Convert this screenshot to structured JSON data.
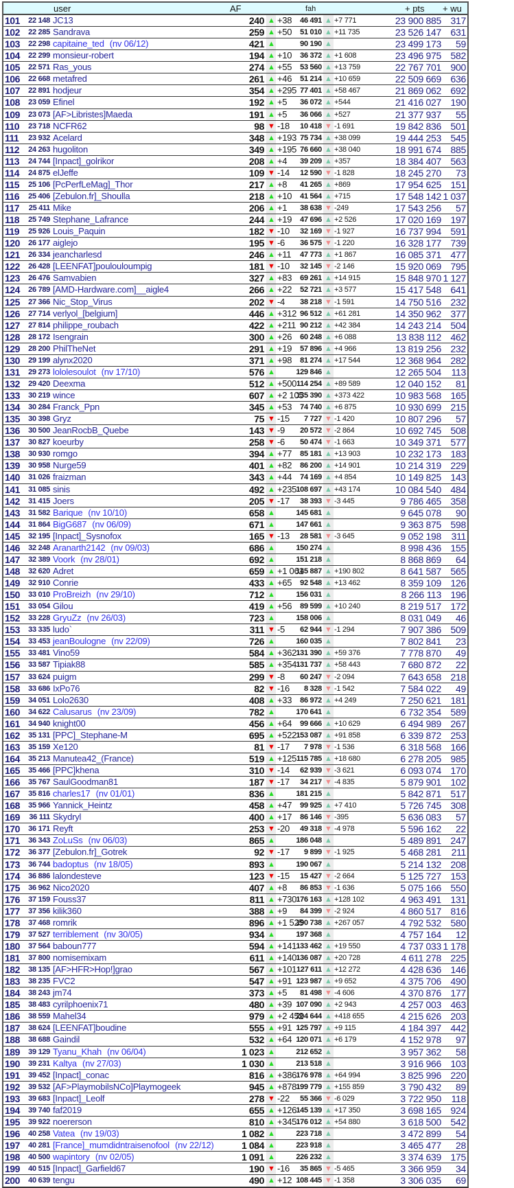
{
  "header": {
    "user": "user",
    "af": "AF",
    "fah": "fah",
    "pts": "+ pts",
    "wu": "+ wu"
  },
  "colors": {
    "af_up": "#22dd22",
    "af_down": "#ee0000",
    "fah_up": "#77c9a8",
    "fah_down": "#f08a8a",
    "header_bg": "#ddfbff",
    "name": "#25259a",
    "new_name": "#3030e8"
  },
  "icons": {
    "up": "triangle-up-icon",
    "down": "triangle-down-icon",
    "up_glyph": "▲",
    "down_glyph": "▼"
  },
  "columns": [
    "rank",
    "score",
    "name",
    "new_since",
    "af",
    "af_trend",
    "af_delta",
    "fah",
    "fah_trend",
    "fah_delta",
    "pts",
    "wu"
  ],
  "rows": [
    [
      "101",
      "22 148",
      "JC13",
      "",
      "240",
      "u",
      "+38",
      "46 491",
      "u",
      "+7 771",
      "23 900 885",
      "317"
    ],
    [
      "102",
      "22 285",
      "Sandrava",
      "",
      "259",
      "u",
      "+50",
      "51 010",
      "u",
      "+11 735",
      "23 526 147",
      "631"
    ],
    [
      "103",
      "22 298",
      "capitaine_ted",
      "(nv 06/12)",
      "421",
      "u",
      "",
      "90 190",
      "u",
      "",
      "23 499 173",
      "59"
    ],
    [
      "104",
      "22 299",
      "monsieur-robert",
      "",
      "194",
      "u",
      "+10",
      "36 372",
      "u",
      "+1 608",
      "23 496 975",
      "582"
    ],
    [
      "105",
      "22 571",
      "Ras_yous",
      "",
      "274",
      "u",
      "+55",
      "53 560",
      "u",
      "+13 759",
      "22 767 701",
      "900"
    ],
    [
      "106",
      "22 668",
      "metafred",
      "",
      "261",
      "u",
      "+46",
      "51 214",
      "u",
      "+10 659",
      "22 509 669",
      "636"
    ],
    [
      "107",
      "22 891",
      "hodjeur",
      "",
      "354",
      "u",
      "+295",
      "77 401",
      "u",
      "+58 467",
      "21 869 062",
      "692"
    ],
    [
      "108",
      "23 059",
      "Efinel",
      "",
      "192",
      "u",
      "+5",
      "36 072",
      "u",
      "+544",
      "21 416 027",
      "190"
    ],
    [
      "109",
      "23 073",
      "[AF>Libristes]Maeda",
      "",
      "191",
      "u",
      "+5",
      "36 066",
      "u",
      "+527",
      "21 377 937",
      "55"
    ],
    [
      "110",
      "23 718",
      "NCFR62",
      "",
      "98",
      "d",
      "-18",
      "10 418",
      "d",
      "-1 691",
      "19 842 836",
      "501"
    ],
    [
      "111",
      "23 932",
      "Acelard",
      "",
      "348",
      "u",
      "+193",
      "75 734",
      "u",
      "+38 099",
      "19 444 253",
      "545"
    ],
    [
      "112",
      "24 263",
      "hugoliton",
      "",
      "349",
      "u",
      "+195",
      "76 660",
      "u",
      "+38 040",
      "18 991 674",
      "885"
    ],
    [
      "113",
      "24 744",
      "[Inpact]_golrikor",
      "",
      "208",
      "u",
      "+4",
      "39 209",
      "u",
      "+357",
      "18 384 407",
      "563"
    ],
    [
      "114",
      "24 875",
      "elJeffe",
      "",
      "109",
      "d",
      "-14",
      "12 590",
      "d",
      "-1 828",
      "18 245 270",
      "73"
    ],
    [
      "115",
      "25 106",
      "[PcPerfLeMag]_Thor",
      "",
      "217",
      "u",
      "+8",
      "41 265",
      "u",
      "+869",
      "17 954 625",
      "151"
    ],
    [
      "116",
      "25 406",
      "[Zebulon.fr]_Shoulla",
      "",
      "218",
      "u",
      "+10",
      "41 564",
      "u",
      "+715",
      "17 548 142",
      "1 037"
    ],
    [
      "117",
      "25 411",
      "Mike",
      "",
      "206",
      "u",
      "+1",
      "38 638",
      "d",
      "-249",
      "17 543 256",
      "57"
    ],
    [
      "118",
      "25 749",
      "Stephane_Lafrance",
      "",
      "244",
      "u",
      "+19",
      "47 696",
      "u",
      "+2 526",
      "17 020 169",
      "197"
    ],
    [
      "119",
      "25 926",
      "Louis_Paquin",
      "",
      "182",
      "d",
      "-10",
      "32 169",
      "d",
      "-1 927",
      "16 737 994",
      "591"
    ],
    [
      "120",
      "26 177",
      "aiglejo",
      "",
      "195",
      "d",
      "-6",
      "36 575",
      "d",
      "-1 220",
      "16 328 177",
      "739"
    ],
    [
      "121",
      "26 334",
      "jeancharlesd",
      "",
      "246",
      "u",
      "+11",
      "47 773",
      "u",
      "+1 867",
      "16 085 371",
      "477"
    ],
    [
      "122",
      "26 428",
      "[LEENFAT]poulouloumpig",
      "",
      "181",
      "d",
      "-10",
      "32 145",
      "d",
      "-2 146",
      "15 920 069",
      "795"
    ],
    [
      "123",
      "26 476",
      "Samvabien",
      "",
      "327",
      "u",
      "+83",
      "69 261",
      "u",
      "+14 915",
      "15 848 970",
      "1 127"
    ],
    [
      "124",
      "26 789",
      "[AMD-Hardware.com]__aigle4",
      "",
      "266",
      "u",
      "+22",
      "52 721",
      "u",
      "+3 577",
      "15 417 548",
      "641"
    ],
    [
      "125",
      "27 366",
      "Nic_Stop_Virus",
      "",
      "202",
      "d",
      "-4",
      "38 218",
      "d",
      "-1 591",
      "14 750 516",
      "232"
    ],
    [
      "126",
      "27 714",
      "verlyol_[belgium]",
      "",
      "446",
      "u",
      "+312",
      "96 512",
      "u",
      "+61 281",
      "14 350 962",
      "377"
    ],
    [
      "127",
      "27 814",
      "philippe_roubach",
      "",
      "422",
      "u",
      "+211",
      "90 212",
      "u",
      "+42 384",
      "14 243 214",
      "504"
    ],
    [
      "128",
      "28 172",
      "Isengrain",
      "",
      "300",
      "u",
      "+26",
      "60 248",
      "u",
      "+6 088",
      "13 838 112",
      "462"
    ],
    [
      "129",
      "28 200",
      "PhilTheNet",
      "",
      "291",
      "u",
      "+19",
      "57 896",
      "u",
      "+4 966",
      "13 819 256",
      "232"
    ],
    [
      "130",
      "29 199",
      "alynx2020",
      "",
      "371",
      "u",
      "+98",
      "81 274",
      "u",
      "+17 544",
      "12 368 964",
      "282"
    ],
    [
      "131",
      "29 273",
      "lololesoulot",
      "(nv 17/10)",
      "576",
      "u",
      "",
      "129 846",
      "u",
      "",
      "12 265 504",
      "113"
    ],
    [
      "132",
      "29 420",
      "Deexma",
      "",
      "512",
      "u",
      "+500",
      "114 254",
      "u",
      "+89 589",
      "12 040 152",
      "81"
    ],
    [
      "133",
      "30 219",
      "wince",
      "",
      "607",
      "u",
      "+2 105",
      "135 390",
      "u",
      "+373 422",
      "10 983 568",
      "165"
    ],
    [
      "134",
      "30 284",
      "Franck_Ppn",
      "",
      "345",
      "u",
      "+53",
      "74 740",
      "u",
      "+6 875",
      "10 930 699",
      "215"
    ],
    [
      "135",
      "30 398",
      "Gryz",
      "",
      "75",
      "d",
      "-15",
      "7 727",
      "d",
      "-1 420",
      "10 807 296",
      "57"
    ],
    [
      "136",
      "30 500",
      "JeanRocbB_Quebe",
      "",
      "143",
      "d",
      "-9",
      "20 572",
      "d",
      "-2 864",
      "10 692 745",
      "508"
    ],
    [
      "137",
      "30 827",
      "koeurby",
      "",
      "258",
      "d",
      "-6",
      "50 474",
      "d",
      "-1 663",
      "10 349 371",
      "577"
    ],
    [
      "138",
      "30 930",
      "romgo",
      "",
      "394",
      "u",
      "+77",
      "85 181",
      "u",
      "+13 903",
      "10 232 173",
      "183"
    ],
    [
      "139",
      "30 958",
      "Nurge59",
      "",
      "401",
      "u",
      "+82",
      "86 200",
      "u",
      "+14 901",
      "10 214 319",
      "229"
    ],
    [
      "140",
      "31 026",
      "fraizman",
      "",
      "343",
      "u",
      "+44",
      "74 169",
      "u",
      "+4 854",
      "10 149 825",
      "143"
    ],
    [
      "141",
      "31 085",
      "sinis",
      "",
      "492",
      "u",
      "+235",
      "108 697",
      "u",
      "+43 174",
      "10 084 540",
      "484"
    ],
    [
      "142",
      "31 415",
      "Joers",
      "",
      "205",
      "d",
      "-17",
      "38 393",
      "d",
      "-3 445",
      "9 786 465",
      "358"
    ],
    [
      "143",
      "31 582",
      "Barique",
      "(nv 10/10)",
      "658",
      "u",
      "",
      "145 681",
      "u",
      "",
      "9 645 078",
      "90"
    ],
    [
      "144",
      "31 864",
      "BigG687",
      "(nv 06/09)",
      "671",
      "u",
      "",
      "147 661",
      "u",
      "",
      "9 363 875",
      "598"
    ],
    [
      "145",
      "32 195",
      "[Inpact]_Sysnofox",
      "",
      "165",
      "d",
      "-13",
      "28 581",
      "d",
      "-3 645",
      "9 052 198",
      "311"
    ],
    [
      "146",
      "32 248",
      "Aranarth2142",
      "(nv 09/03)",
      "686",
      "u",
      "",
      "150 274",
      "u",
      "",
      "8 998 436",
      "155"
    ],
    [
      "147",
      "32 389",
      "Voork",
      "(nv 28/01)",
      "692",
      "u",
      "",
      "151 218",
      "u",
      "",
      "8 868 869",
      "64"
    ],
    [
      "148",
      "32 620",
      "Adret",
      "",
      "659",
      "u",
      "+1 061",
      "145 887",
      "u",
      "+190 802",
      "8 641 587",
      "565"
    ],
    [
      "149",
      "32 910",
      "Conrie",
      "",
      "433",
      "u",
      "+65",
      "92 548",
      "u",
      "+13 462",
      "8 359 109",
      "126"
    ],
    [
      "150",
      "33 010",
      "ProBreizh",
      "(nv 29/10)",
      "712",
      "u",
      "",
      "156 031",
      "u",
      "",
      "8 266 113",
      "196"
    ],
    [
      "151",
      "33 054",
      "Gilou",
      "",
      "419",
      "u",
      "+56",
      "89 599",
      "u",
      "+10 240",
      "8 219 517",
      "172"
    ],
    [
      "152",
      "33 228",
      "GryuZz",
      "(nv 26/03)",
      "723",
      "u",
      "",
      "158 006",
      "u",
      "",
      "8 031 049",
      "46"
    ],
    [
      "153",
      "33 335",
      "ludo`",
      "",
      "311",
      "d",
      "-5",
      "62 944",
      "d",
      "-1 294",
      "7 907 386",
      "509"
    ],
    [
      "154",
      "33 453",
      "jeanBoulogne",
      "(nv 22/09)",
      "726",
      "u",
      "",
      "160 035",
      "u",
      "",
      "7 802 841",
      "23"
    ],
    [
      "155",
      "33 481",
      "Vino59",
      "",
      "584",
      "u",
      "+362",
      "131 390",
      "u",
      "+59 376",
      "7 778 870",
      "49"
    ],
    [
      "156",
      "33 587",
      "Tipiak88",
      "",
      "585",
      "u",
      "+354",
      "131 737",
      "u",
      "+58 443",
      "7 680 872",
      "22"
    ],
    [
      "157",
      "33 624",
      "puigm",
      "",
      "299",
      "d",
      "-8",
      "60 247",
      "d",
      "-2 094",
      "7 643 658",
      "218"
    ],
    [
      "158",
      "33 686",
      "IxPo76",
      "",
      "82",
      "d",
      "-16",
      "8 328",
      "d",
      "-1 542",
      "7 584 022",
      "49"
    ],
    [
      "159",
      "34 051",
      "Lolo2630",
      "",
      "408",
      "u",
      "+33",
      "86 972",
      "u",
      "+4 249",
      "7 250 621",
      "181"
    ],
    [
      "160",
      "34 622",
      "Calusarus",
      "(nv 23/09)",
      "782",
      "u",
      "",
      "170 641",
      "u",
      "",
      "6 732 354",
      "589"
    ],
    [
      "161",
      "34 940",
      "knight00",
      "",
      "456",
      "u",
      "+64",
      "99 666",
      "u",
      "+10 629",
      "6 494 989",
      "267"
    ],
    [
      "162",
      "35 131",
      "[PPC]_Stephane-M",
      "",
      "695",
      "u",
      "+522",
      "153 087",
      "u",
      "+91 858",
      "6 339 872",
      "253"
    ],
    [
      "163",
      "35 159",
      "Xe120",
      "",
      "81",
      "d",
      "-17",
      "7 978",
      "d",
      "-1 536",
      "6 318 568",
      "166"
    ],
    [
      "164",
      "35 213",
      "Manutea42_(France)",
      "",
      "519",
      "u",
      "+125",
      "115 785",
      "u",
      "+18 680",
      "6 278 205",
      "985"
    ],
    [
      "165",
      "35 466",
      "[PPC]khena",
      "",
      "310",
      "d",
      "-14",
      "62 939",
      "d",
      "-3 621",
      "6 093 074",
      "170"
    ],
    [
      "166",
      "35 767",
      "SaulGoodman81",
      "",
      "187",
      "d",
      "-17",
      "34 217",
      "d",
      "-4 835",
      "5 879 901",
      "102"
    ],
    [
      "167",
      "35 816",
      "charles17",
      "(nv 01/01)",
      "836",
      "u",
      "",
      "181 215",
      "u",
      "",
      "5 842 871",
      "517"
    ],
    [
      "168",
      "35 966",
      "Yannick_Heintz",
      "",
      "458",
      "u",
      "+47",
      "99 925",
      "u",
      "+7 410",
      "5 726 745",
      "308"
    ],
    [
      "169",
      "36 111",
      "Skydryl",
      "",
      "400",
      "u",
      "+17",
      "86 146",
      "d",
      "-395",
      "5 636 083",
      "57"
    ],
    [
      "170",
      "36 171",
      "Reyft",
      "",
      "253",
      "d",
      "-20",
      "49 318",
      "d",
      "-4 978",
      "5 596 162",
      "22"
    ],
    [
      "171",
      "36 343",
      "ZoLuSs",
      "(nv 06/03)",
      "865",
      "u",
      "",
      "186 048",
      "u",
      "",
      "5 489 891",
      "247"
    ],
    [
      "172",
      "36 377",
      "[Zebulon.fr]_Gotrek",
      "",
      "92",
      "d",
      "-17",
      "9 899",
      "d",
      "-1 925",
      "5 468 281",
      "211"
    ],
    [
      "173",
      "36 744",
      "badoptus",
      "(nv 18/05)",
      "893",
      "u",
      "",
      "190 067",
      "u",
      "",
      "5 214 132",
      "208"
    ],
    [
      "174",
      "36 886",
      "lalondesteve",
      "",
      "123",
      "d",
      "-15",
      "15 427",
      "d",
      "-2 664",
      "5 125 727",
      "153"
    ],
    [
      "175",
      "36 962",
      "Nico2020",
      "",
      "407",
      "u",
      "+8",
      "86 853",
      "d",
      "-1 636",
      "5 075 166",
      "550"
    ],
    [
      "176",
      "37 159",
      "Fouss37",
      "",
      "811",
      "u",
      "+730",
      "176 163",
      "u",
      "+128 102",
      "4 963 491",
      "131"
    ],
    [
      "177",
      "37 356",
      "kilik360",
      "",
      "388",
      "u",
      "+9",
      "84 399",
      "d",
      "-2 924",
      "4 860 517",
      "816"
    ],
    [
      "178",
      "37 468",
      "romrik",
      "",
      "896",
      "u",
      "+1 525",
      "190 738",
      "u",
      "+267 057",
      "4 792 532",
      "580"
    ],
    [
      "179",
      "37 527",
      "terriblement",
      "(nv 30/05)",
      "934",
      "u",
      "",
      "197 368",
      "u",
      "",
      "4 757 164",
      "12"
    ],
    [
      "180",
      "37 564",
      "baboun777",
      "",
      "594",
      "u",
      "+141",
      "133 462",
      "u",
      "+19 550",
      "4 737 033",
      "1 178"
    ],
    [
      "181",
      "37 800",
      "nomisemixam",
      "",
      "611",
      "u",
      "+140",
      "136 087",
      "u",
      "+20 728",
      "4 611 278",
      "225"
    ],
    [
      "182",
      "38 135",
      "[AF>HFR>Hop!]grao",
      "",
      "567",
      "u",
      "+101",
      "127 611",
      "u",
      "+12 272",
      "4 428 636",
      "146"
    ],
    [
      "183",
      "38 235",
      "FVC2",
      "",
      "547",
      "u",
      "+91",
      "123 987",
      "u",
      "+9 652",
      "4 375 706",
      "490"
    ],
    [
      "184",
      "38 243",
      "jm74",
      "",
      "373",
      "u",
      "+5",
      "81 498",
      "d",
      "-4 606",
      "4 370 876",
      "177"
    ],
    [
      "185",
      "38 483",
      "cyrilphoenix71",
      "",
      "480",
      "u",
      "+39",
      "107 090",
      "u",
      "+2 943",
      "4 257 003",
      "463"
    ],
    [
      "186",
      "38 559",
      "Mahel34",
      "",
      "979",
      "u",
      "+2 452",
      "204 644",
      "u",
      "+418 655",
      "4 215 626",
      "203"
    ],
    [
      "187",
      "38 624",
      "[LEENFAT]boudine",
      "",
      "555",
      "u",
      "+91",
      "125 797",
      "u",
      "+9 115",
      "4 184 397",
      "442"
    ],
    [
      "188",
      "38 688",
      "Gaindil",
      "",
      "532",
      "u",
      "+64",
      "120 071",
      "u",
      "+6 179",
      "4 152 978",
      "97"
    ],
    [
      "189",
      "39 129",
      "Tyanu_Khah",
      "(nv 06/04)",
      "1 023",
      "u",
      "",
      "212 652",
      "u",
      "",
      "3 957 362",
      "58"
    ],
    [
      "190",
      "39 231",
      "Kaltya",
      "(nv 27/03)",
      "1 030",
      "u",
      "",
      "213 518",
      "u",
      "",
      "3 916 966",
      "103"
    ],
    [
      "191",
      "39 452",
      "[Inpact]_conac",
      "",
      "816",
      "u",
      "+386",
      "176 978",
      "u",
      "+64 994",
      "3 825 996",
      "220"
    ],
    [
      "192",
      "39 532",
      "[AF>PlaymobilsNCo]Playmogeek",
      "",
      "945",
      "u",
      "+878",
      "199 779",
      "u",
      "+155 859",
      "3 790 432",
      "89"
    ],
    [
      "193",
      "39 683",
      "[Inpact]_Leolf",
      "",
      "278",
      "d",
      "-22",
      "55 366",
      "d",
      "-6 029",
      "3 722 950",
      "118"
    ],
    [
      "194",
      "39 740",
      "faf2019",
      "",
      "655",
      "u",
      "+126",
      "145 139",
      "u",
      "+17 350",
      "3 698 165",
      "924"
    ],
    [
      "195",
      "39 922",
      "noererson",
      "",
      "810",
      "u",
      "+345",
      "176 012",
      "u",
      "+54 880",
      "3 618 500",
      "542"
    ],
    [
      "196",
      "40 258",
      "Vatea",
      "(nv 19/03)",
      "1 082",
      "u",
      "",
      "223 718",
      "u",
      "",
      "3 472 899",
      "54"
    ],
    [
      "197",
      "40 281",
      "[France]_mumdidntraisenofool",
      "(nv 22/12)",
      "1 084",
      "u",
      "",
      "223 918",
      "u",
      "",
      "3 465 477",
      "28"
    ],
    [
      "198",
      "40 500",
      "wapintory",
      "(nv 02/05)",
      "1 091",
      "u",
      "",
      "226 232",
      "u",
      "",
      "3 374 639",
      "175"
    ],
    [
      "199",
      "40 515",
      "[Inpact]_Garfield67",
      "",
      "190",
      "d",
      "-16",
      "35 865",
      "d",
      "-5 465",
      "3 366 959",
      "34"
    ],
    [
      "200",
      "40 639",
      "tengu",
      "",
      "490",
      "u",
      "+12",
      "108 445",
      "d",
      "-1 358",
      "3 306 035",
      "69"
    ]
  ]
}
